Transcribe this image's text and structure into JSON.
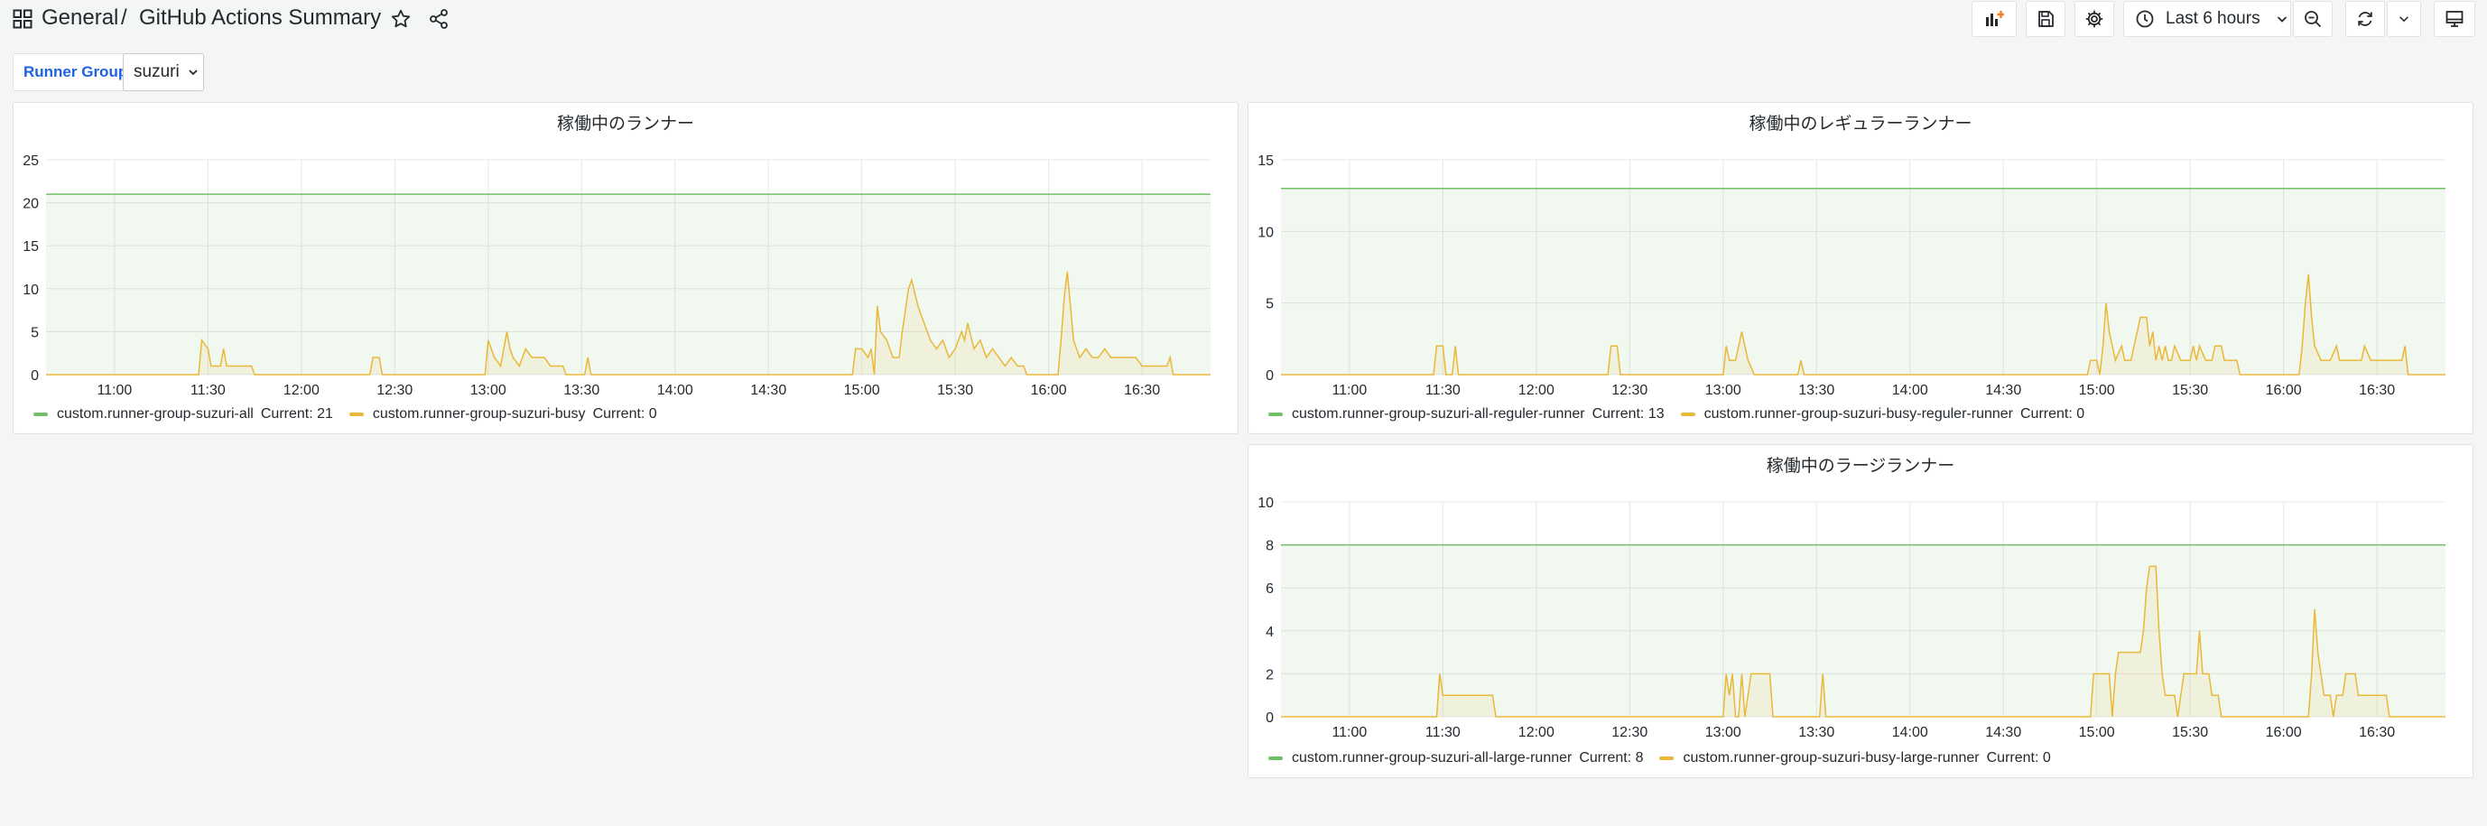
{
  "header": {
    "folder": "General",
    "separator": "/",
    "dashboard_title": "GitHub Actions Summary",
    "time_range": "Last 6 hours"
  },
  "variables": {
    "label": "Runner Group",
    "value": "suzuri"
  },
  "colors": {
    "green": "#73bf69",
    "yellow": "#eab839",
    "grid": "#e6e7e8",
    "panel_border": "#dfe1e4"
  },
  "x_ticks": [
    "11:00",
    "11:30",
    "12:00",
    "12:30",
    "13:00",
    "13:30",
    "14:00",
    "14:30",
    "15:00",
    "15:30",
    "16:00",
    "16:30"
  ],
  "panels": [
    {
      "title": "稼働中のランナー",
      "legend": [
        {
          "name": "custom.runner-group-suzuri-all",
          "current_label": "Current: 21"
        },
        {
          "name": "custom.runner-group-suzuri-busy",
          "current_label": "Current: 0"
        }
      ]
    },
    {
      "title": "稼働中のレギュラーランナー",
      "legend": [
        {
          "name": "custom.runner-group-suzuri-all-reguler-runner",
          "current_label": "Current: 13"
        },
        {
          "name": "custom.runner-group-suzuri-busy-reguler-runner",
          "current_label": "Current: 0"
        }
      ]
    },
    {
      "title": "稼働中のラージランナー",
      "legend": [
        {
          "name": "custom.runner-group-suzuri-all-large-runner",
          "current_label": "Current: 8"
        },
        {
          "name": "custom.runner-group-suzuri-busy-large-runner",
          "current_label": "Current: 0"
        }
      ]
    }
  ],
  "chart_data": [
    {
      "type": "area",
      "title": "稼働中のランナー",
      "x_start": "10:38",
      "x_end": "16:52",
      "x_ticks": [
        "11:00",
        "11:30",
        "12:00",
        "12:30",
        "13:00",
        "13:30",
        "14:00",
        "14:30",
        "15:00",
        "15:30",
        "16:00",
        "16:30"
      ],
      "y_ticks": [
        0,
        5,
        10,
        15,
        20,
        25
      ],
      "ylim": [
        0,
        25
      ],
      "series": [
        {
          "name": "custom.runner-group-suzuri-all",
          "color": "#73bf69",
          "flat": 21
        },
        {
          "name": "custom.runner-group-suzuri-busy",
          "color": "#eab839",
          "points": [
            [
              "10:38",
              0
            ],
            [
              "11:27",
              0
            ],
            [
              "11:28",
              4
            ],
            [
              "11:30",
              3
            ],
            [
              "11:31",
              1
            ],
            [
              "11:34",
              1
            ],
            [
              "11:35",
              3
            ],
            [
              "11:36",
              1
            ],
            [
              "11:44",
              1
            ],
            [
              "11:45",
              0
            ],
            [
              "12:22",
              0
            ],
            [
              "12:23",
              2
            ],
            [
              "12:25",
              2
            ],
            [
              "12:26",
              0
            ],
            [
              "12:59",
              0
            ],
            [
              "13:00",
              4
            ],
            [
              "13:02",
              2
            ],
            [
              "13:04",
              1
            ],
            [
              "13:06",
              5
            ],
            [
              "13:07",
              3
            ],
            [
              "13:08",
              2
            ],
            [
              "13:10",
              1
            ],
            [
              "13:12",
              3
            ],
            [
              "13:14",
              2
            ],
            [
              "13:18",
              2
            ],
            [
              "13:20",
              1
            ],
            [
              "13:24",
              1
            ],
            [
              "13:25",
              0
            ],
            [
              "13:31",
              0
            ],
            [
              "13:32",
              2
            ],
            [
              "13:33",
              0
            ],
            [
              "14:57",
              0
            ],
            [
              "14:58",
              3
            ],
            [
              "15:00",
              3
            ],
            [
              "15:02",
              2
            ],
            [
              "15:03",
              3
            ],
            [
              "15:04",
              0
            ],
            [
              "15:05",
              8
            ],
            [
              "15:06",
              5
            ],
            [
              "15:08",
              4
            ],
            [
              "15:10",
              2
            ],
            [
              "15:12",
              2
            ],
            [
              "15:13",
              5
            ],
            [
              "15:15",
              10
            ],
            [
              "15:16",
              11
            ],
            [
              "15:18",
              8
            ],
            [
              "15:20",
              6
            ],
            [
              "15:22",
              4
            ],
            [
              "15:24",
              3
            ],
            [
              "15:26",
              4
            ],
            [
              "15:28",
              2
            ],
            [
              "15:30",
              3
            ],
            [
              "15:32",
              5
            ],
            [
              "15:33",
              4
            ],
            [
              "15:34",
              6
            ],
            [
              "15:36",
              3
            ],
            [
              "15:38",
              4
            ],
            [
              "15:40",
              2
            ],
            [
              "15:42",
              3
            ],
            [
              "15:44",
              2
            ],
            [
              "15:46",
              1
            ],
            [
              "15:48",
              2
            ],
            [
              "15:50",
              1
            ],
            [
              "15:52",
              1
            ],
            [
              "15:53",
              0
            ],
            [
              "16:03",
              0
            ],
            [
              "16:04",
              4
            ],
            [
              "16:05",
              9
            ],
            [
              "16:06",
              12
            ],
            [
              "16:07",
              8
            ],
            [
              "16:08",
              4
            ],
            [
              "16:10",
              2
            ],
            [
              "16:12",
              3
            ],
            [
              "16:14",
              2
            ],
            [
              "16:16",
              2
            ],
            [
              "16:18",
              3
            ],
            [
              "16:20",
              2
            ],
            [
              "16:25",
              2
            ],
            [
              "16:28",
              2
            ],
            [
              "16:30",
              1
            ],
            [
              "16:38",
              1
            ],
            [
              "16:39",
              2
            ],
            [
              "16:40",
              0
            ],
            [
              "16:52",
              0
            ]
          ]
        }
      ]
    },
    {
      "type": "area",
      "title": "稼働中のレギュラーランナー",
      "x_start": "10:38",
      "x_end": "16:52",
      "x_ticks": [
        "11:00",
        "11:30",
        "12:00",
        "12:30",
        "13:00",
        "13:30",
        "14:00",
        "14:30",
        "15:00",
        "15:30",
        "16:00",
        "16:30"
      ],
      "y_ticks": [
        0,
        5,
        10,
        15
      ],
      "ylim": [
        0,
        15
      ],
      "series": [
        {
          "name": "custom.runner-group-suzuri-all-reguler-runner",
          "color": "#73bf69",
          "flat": 13
        },
        {
          "name": "custom.runner-group-suzuri-busy-reguler-runner",
          "color": "#eab839",
          "points": [
            [
              "10:38",
              0
            ],
            [
              "11:27",
              0
            ],
            [
              "11:28",
              2
            ],
            [
              "11:30",
              2
            ],
            [
              "11:31",
              0
            ],
            [
              "11:33",
              0
            ],
            [
              "11:34",
              2
            ],
            [
              "11:35",
              0
            ],
            [
              "12:23",
              0
            ],
            [
              "12:24",
              2
            ],
            [
              "12:26",
              2
            ],
            [
              "12:27",
              0
            ],
            [
              "13:00",
              0
            ],
            [
              "13:01",
              2
            ],
            [
              "13:02",
              1
            ],
            [
              "13:04",
              1
            ],
            [
              "13:06",
              3
            ],
            [
              "13:07",
              2
            ],
            [
              "13:08",
              1
            ],
            [
              "13:10",
              0
            ],
            [
              "13:24",
              0
            ],
            [
              "13:25",
              1
            ],
            [
              "13:26",
              0
            ],
            [
              "14:57",
              0
            ],
            [
              "14:58",
              1
            ],
            [
              "15:00",
              1
            ],
            [
              "15:01",
              0
            ],
            [
              "15:02",
              2
            ],
            [
              "15:03",
              5
            ],
            [
              "15:04",
              3
            ],
            [
              "15:05",
              2
            ],
            [
              "15:06",
              1
            ],
            [
              "15:08",
              2
            ],
            [
              "15:09",
              1
            ],
            [
              "15:11",
              1
            ],
            [
              "15:12",
              2
            ],
            [
              "15:14",
              4
            ],
            [
              "15:16",
              4
            ],
            [
              "15:17",
              2
            ],
            [
              "15:18",
              3
            ],
            [
              "15:19",
              1
            ],
            [
              "15:20",
              2
            ],
            [
              "15:21",
              1
            ],
            [
              "15:22",
              2
            ],
            [
              "15:23",
              1
            ],
            [
              "15:24",
              1
            ],
            [
              "15:25",
              2
            ],
            [
              "15:27",
              1
            ],
            [
              "15:30",
              1
            ],
            [
              "15:31",
              2
            ],
            [
              "15:32",
              1
            ],
            [
              "15:33",
              2
            ],
            [
              "15:35",
              1
            ],
            [
              "15:37",
              1
            ],
            [
              "15:38",
              2
            ],
            [
              "15:40",
              2
            ],
            [
              "15:41",
              1
            ],
            [
              "15:45",
              1
            ],
            [
              "15:46",
              0
            ],
            [
              "16:05",
              0
            ],
            [
              "16:06",
              2
            ],
            [
              "16:07",
              5
            ],
            [
              "16:08",
              7
            ],
            [
              "16:09",
              4
            ],
            [
              "16:10",
              2
            ],
            [
              "16:12",
              1
            ],
            [
              "16:15",
              1
            ],
            [
              "16:17",
              2
            ],
            [
              "16:18",
              1
            ],
            [
              "16:25",
              1
            ],
            [
              "16:26",
              2
            ],
            [
              "16:28",
              1
            ],
            [
              "16:38",
              1
            ],
            [
              "16:39",
              2
            ],
            [
              "16:40",
              0
            ],
            [
              "16:52",
              0
            ]
          ]
        }
      ]
    },
    {
      "type": "area",
      "title": "稼働中のラージランナー",
      "x_start": "10:38",
      "x_end": "16:52",
      "x_ticks": [
        "11:00",
        "11:30",
        "12:00",
        "12:30",
        "13:00",
        "13:30",
        "14:00",
        "14:30",
        "15:00",
        "15:30",
        "16:00",
        "16:30"
      ],
      "y_ticks": [
        0,
        2,
        4,
        6,
        8,
        10
      ],
      "ylim": [
        0,
        10
      ],
      "series": [
        {
          "name": "custom.runner-group-suzuri-all-large-runner",
          "color": "#73bf69",
          "flat": 8
        },
        {
          "name": "custom.runner-group-suzuri-busy-large-runner",
          "color": "#eab839",
          "points": [
            [
              "10:38",
              0
            ],
            [
              "11:28",
              0
            ],
            [
              "11:29",
              2
            ],
            [
              "11:30",
              1
            ],
            [
              "11:46",
              1
            ],
            [
              "11:47",
              0
            ],
            [
              "13:00",
              0
            ],
            [
              "13:01",
              2
            ],
            [
              "13:02",
              1
            ],
            [
              "13:03",
              2
            ],
            [
              "13:04",
              0
            ],
            [
              "13:05",
              0
            ],
            [
              "13:06",
              2
            ],
            [
              "13:07",
              0
            ],
            [
              "13:08",
              1
            ],
            [
              "13:09",
              2
            ],
            [
              "13:15",
              2
            ],
            [
              "13:16",
              0
            ],
            [
              "13:31",
              0
            ],
            [
              "13:32",
              2
            ],
            [
              "13:33",
              0
            ],
            [
              "14:58",
              0
            ],
            [
              "14:59",
              2
            ],
            [
              "15:04",
              2
            ],
            [
              "15:05",
              0
            ],
            [
              "15:06",
              2
            ],
            [
              "15:07",
              3
            ],
            [
              "15:14",
              3
            ],
            [
              "15:15",
              4
            ],
            [
              "15:16",
              6
            ],
            [
              "15:17",
              7
            ],
            [
              "15:19",
              7
            ],
            [
              "15:20",
              4
            ],
            [
              "15:21",
              2
            ],
            [
              "15:22",
              1
            ],
            [
              "15:25",
              1
            ],
            [
              "15:26",
              0
            ],
            [
              "15:27",
              1
            ],
            [
              "15:28",
              2
            ],
            [
              "15:32",
              2
            ],
            [
              "15:33",
              4
            ],
            [
              "15:34",
              2
            ],
            [
              "15:36",
              2
            ],
            [
              "15:37",
              1
            ],
            [
              "15:39",
              1
            ],
            [
              "15:40",
              0
            ],
            [
              "16:08",
              0
            ],
            [
              "16:09",
              2
            ],
            [
              "16:10",
              5
            ],
            [
              "16:11",
              3
            ],
            [
              "16:12",
              2
            ],
            [
              "16:13",
              1
            ],
            [
              "16:15",
              1
            ],
            [
              "16:16",
              0
            ],
            [
              "16:17",
              1
            ],
            [
              "16:19",
              1
            ],
            [
              "16:20",
              2
            ],
            [
              "16:23",
              2
            ],
            [
              "16:24",
              1
            ],
            [
              "16:33",
              1
            ],
            [
              "16:34",
              0
            ],
            [
              "16:52",
              0
            ]
          ]
        }
      ]
    }
  ]
}
